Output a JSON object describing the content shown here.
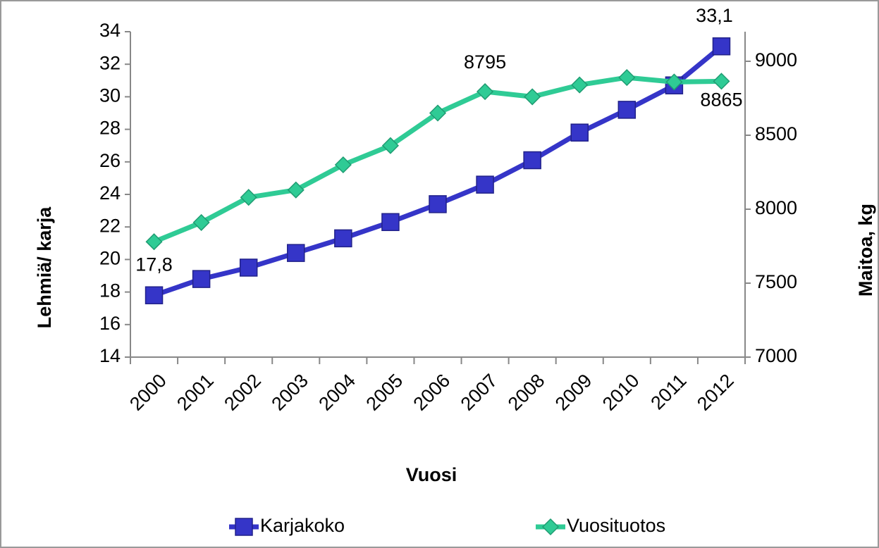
{
  "chart_data": {
    "type": "line",
    "x_label": "Vuosi",
    "y_label": "Lehmiä/ karja",
    "y2_label": "Maitoa, kg",
    "categories": [
      "2000",
      "2001",
      "2002",
      "2003",
      "2004",
      "2005",
      "2006",
      "2007",
      "2008",
      "2009",
      "2010",
      "2011",
      "2012"
    ],
    "series": [
      {
        "name": "Karjakoko",
        "color": "#3535c8",
        "marker": "square",
        "values": [
          17.8,
          18.8,
          19.5,
          20.4,
          21.3,
          22.3,
          23.4,
          24.6,
          26.1,
          27.8,
          29.2,
          30.7,
          33.1
        ],
        "value_labels": [
          "17,8",
          null,
          null,
          null,
          null,
          null,
          null,
          null,
          null,
          null,
          null,
          null,
          "33,1"
        ]
      },
      {
        "name": "Vuosituotos",
        "color": "#2fcb95",
        "marker": "diamond",
        "axis": "y2",
        "values": [
          7780,
          7910,
          8080,
          8130,
          8300,
          8430,
          8650,
          8795,
          8760,
          8840,
          8890,
          8860,
          8865
        ],
        "value_labels": [
          null,
          null,
          null,
          null,
          null,
          null,
          null,
          "8795",
          null,
          null,
          null,
          null,
          "8865"
        ]
      }
    ],
    "ylim": [
      14,
      34
    ],
    "yticks": [
      14,
      16,
      18,
      20,
      22,
      24,
      26,
      28,
      30,
      32,
      34
    ],
    "y2lim": [
      7000,
      9200
    ],
    "y2ticks": [
      7000,
      7500,
      8000,
      8500,
      9000
    ],
    "grid": false,
    "legend": "bottom"
  }
}
